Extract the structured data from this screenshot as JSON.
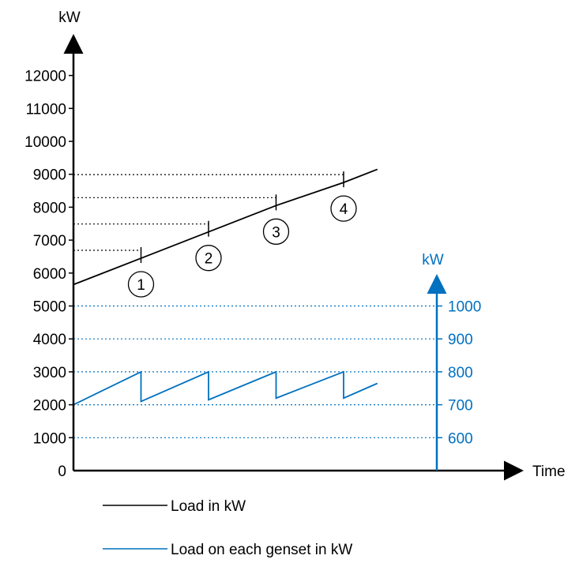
{
  "chart_data": {
    "type": "line",
    "x_label": "Time",
    "left_axis": {
      "unit": "kW",
      "ticks": [
        0,
        1000,
        2000,
        3000,
        4000,
        5000,
        6000,
        7000,
        8000,
        9000,
        10000,
        11000,
        12000
      ],
      "range": [
        0,
        12000
      ]
    },
    "right_axis": {
      "unit": "kW",
      "ticks": [
        600,
        700,
        800,
        900,
        1000
      ],
      "range": [
        600,
        1000
      ]
    },
    "series": [
      {
        "name": "Load in kW",
        "axis": "left",
        "points": [
          [
            0,
            5650
          ],
          [
            1,
            6450
          ],
          [
            2,
            7250
          ],
          [
            3,
            8050
          ],
          [
            4,
            8750
          ],
          [
            4.5,
            9150
          ]
        ]
      },
      {
        "name": "Load on each genset in kW",
        "axis": "right",
        "points": [
          [
            0,
            700
          ],
          [
            1,
            800
          ],
          [
            1,
            710
          ],
          [
            2,
            800
          ],
          [
            2,
            715
          ],
          [
            3,
            800
          ],
          [
            3,
            720
          ],
          [
            4,
            800
          ],
          [
            4,
            720
          ],
          [
            4.5,
            765
          ]
        ]
      }
    ],
    "markers": [
      {
        "label": "1",
        "x": 1,
        "y": 6450
      },
      {
        "label": "2",
        "x": 2,
        "y": 7250
      },
      {
        "label": "3",
        "x": 3,
        "y": 8050
      },
      {
        "label": "4",
        "x": 4,
        "y": 8750
      }
    ]
  },
  "colors": {
    "primary": "#000000",
    "accent": "#0070c0"
  }
}
